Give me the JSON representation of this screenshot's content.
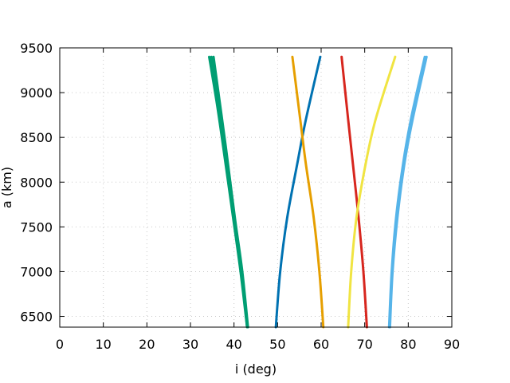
{
  "chart_data": {
    "type": "line",
    "title": "",
    "xlabel": "i (deg)",
    "ylabel": "a (km)",
    "xlim": [
      0,
      90
    ],
    "ylim": [
      6380,
      9500
    ],
    "x_ticks": [
      0,
      10,
      20,
      30,
      40,
      50,
      60,
      70,
      80,
      90
    ],
    "y_ticks": [
      6500,
      7000,
      7500,
      8000,
      8500,
      9000,
      9500
    ],
    "grid": true,
    "legend": "none",
    "series": [
      {
        "color": "#009e73",
        "points": [
          [
            43.0,
            6380
          ],
          [
            41.5,
            7000
          ],
          [
            39.8,
            7600
          ],
          [
            37.5,
            8400
          ],
          [
            36.0,
            8900
          ],
          [
            34.3,
            9400
          ]
        ]
      },
      {
        "color": "#009e73",
        "points": [
          [
            43.0,
            6380
          ],
          [
            41.7,
            7000
          ],
          [
            40.0,
            7600
          ],
          [
            37.8,
            8400
          ],
          [
            36.3,
            8900
          ],
          [
            34.8,
            9400
          ]
        ]
      },
      {
        "color": "#009e73",
        "points": [
          [
            43.2,
            6380
          ],
          [
            41.9,
            7000
          ],
          [
            40.2,
            7600
          ],
          [
            38.1,
            8400
          ],
          [
            36.7,
            8900
          ],
          [
            35.3,
            9400
          ]
        ]
      },
      {
        "color": "#0072b2",
        "points": [
          [
            49.6,
            6380
          ],
          [
            50.6,
            7000
          ],
          [
            52.2,
            7600
          ],
          [
            54.5,
            8200
          ],
          [
            56.5,
            8700
          ],
          [
            59.8,
            9400
          ]
        ]
      },
      {
        "color": "#e69f00",
        "points": [
          [
            60.5,
            6380
          ],
          [
            59.6,
            7000
          ],
          [
            58.3,
            7600
          ],
          [
            56.5,
            8200
          ],
          [
            55.2,
            8700
          ],
          [
            53.4,
            9400
          ]
        ]
      },
      {
        "color": "#d7261e",
        "points": [
          [
            70.5,
            6380
          ],
          [
            69.7,
            7000
          ],
          [
            68.6,
            7600
          ],
          [
            67.3,
            8200
          ],
          [
            66.2,
            8700
          ],
          [
            64.7,
            9400
          ]
        ]
      },
      {
        "color": "#f0e442",
        "points": [
          [
            66.2,
            6380
          ],
          [
            66.9,
            7000
          ],
          [
            68.1,
            7600
          ],
          [
            70.2,
            8200
          ],
          [
            72.5,
            8700
          ],
          [
            77.0,
            9400
          ]
        ]
      },
      {
        "color": "#56b4e9",
        "points": [
          [
            75.6,
            6380
          ],
          [
            76.2,
            7000
          ],
          [
            77.2,
            7600
          ],
          [
            78.8,
            8200
          ],
          [
            80.6,
            8700
          ],
          [
            83.8,
            9400
          ]
        ]
      },
      {
        "color": "#56b4e9",
        "points": [
          [
            75.8,
            6380
          ],
          [
            76.4,
            7000
          ],
          [
            77.5,
            7600
          ],
          [
            79.1,
            8200
          ],
          [
            81.0,
            8700
          ],
          [
            84.2,
            9400
          ]
        ]
      }
    ]
  }
}
